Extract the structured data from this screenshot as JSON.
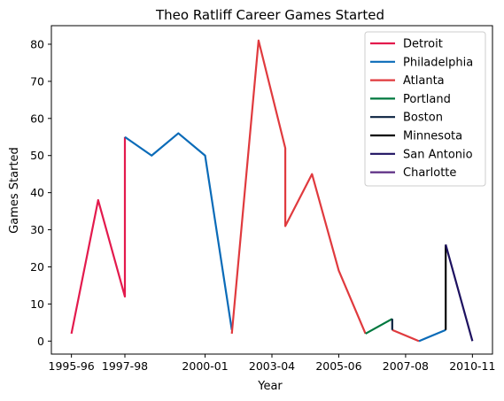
{
  "chart_data": {
    "type": "line",
    "title": "Theo Ratliff Career Games Started",
    "xlabel": "Year",
    "ylabel": "Games Started",
    "x_tick_labels": [
      "1995-96",
      "1997-98",
      "2000-01",
      "2003-04",
      "2005-06",
      "2007-08",
      "2010-11"
    ],
    "x_ticks": [
      0,
      2,
      5,
      7.5,
      10,
      12.5,
      15
    ],
    "xlim": [
      -0.75,
      15.75
    ],
    "yticks": [
      0,
      10,
      20,
      30,
      40,
      50,
      60,
      70,
      80
    ],
    "ylim": [
      -3.5,
      85
    ],
    "grid": false,
    "legend_position": "top-right",
    "series": [
      {
        "name": "Detroit",
        "color": "#e31a4d",
        "points": [
          [
            0,
            2
          ],
          [
            1,
            38
          ],
          [
            2,
            12
          ],
          [
            2,
            55
          ]
        ]
      },
      {
        "name": "Philadelphia",
        "color": "#0a6bb8",
        "points": [
          [
            2,
            55
          ],
          [
            3,
            50
          ],
          [
            4,
            56
          ],
          [
            5,
            50
          ],
          [
            6,
            3
          ]
        ]
      },
      {
        "name": "Atlanta",
        "color": "#e03a3e",
        "points": [
          [
            6,
            2
          ],
          [
            7,
            81
          ],
          [
            8,
            52
          ],
          [
            8,
            31
          ],
          [
            9,
            45
          ],
          [
            10,
            19
          ],
          [
            11,
            2
          ]
        ]
      },
      {
        "name": "Portland",
        "color": "#00783e",
        "points": [
          [
            11,
            2
          ],
          [
            12,
            6
          ]
        ]
      },
      {
        "name": "Boston",
        "color": "#0b2240",
        "points": [
          [
            12,
            6
          ],
          [
            12,
            3
          ]
        ]
      },
      {
        "name": "Minnesota",
        "color": "#000000",
        "points": [
          [
            14,
            3
          ],
          [
            14,
            26
          ]
        ]
      },
      {
        "name": "San Antonio",
        "color": "#1d1160",
        "points": [
          [
            14,
            26
          ],
          [
            15,
            0
          ]
        ]
      },
      {
        "name": "Charlotte",
        "color": "#5b2c83",
        "points": []
      }
    ],
    "extra_segments": [
      {
        "color": "#e03a3e",
        "points": [
          [
            12,
            3
          ],
          [
            13,
            0
          ]
        ]
      },
      {
        "color": "#0a6bb8",
        "points": [
          [
            13,
            0
          ],
          [
            14,
            3
          ]
        ]
      }
    ]
  }
}
